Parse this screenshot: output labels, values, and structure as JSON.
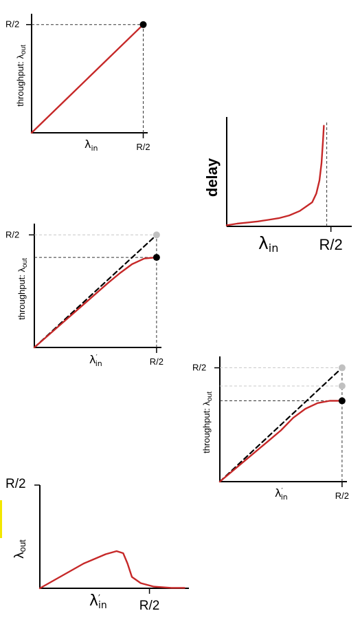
{
  "chart_data": [
    {
      "id": "c1",
      "type": "line",
      "ylabel_main": "throughput: λ",
      "ylabel_sub": "out",
      "xlabel_main": "λ",
      "xlabel_sub": "in",
      "xticks": [
        {
          "label": "R/2",
          "value": 0.5
        }
      ],
      "yticks": [
        {
          "label": "R/2",
          "value": 0.5
        }
      ],
      "xlim": [
        0,
        0.52
      ],
      "ylim": [
        0,
        0.55
      ],
      "series": [
        {
          "color": "#c62828",
          "dashed": false,
          "points": [
            [
              0,
              0
            ],
            [
              0.5,
              0.5
            ]
          ]
        }
      ],
      "refs": [
        {
          "kind": "h",
          "y": 0.5,
          "from": 0,
          "to": 0.5,
          "color": "#333333"
        },
        {
          "kind": "v",
          "x": 0.5,
          "from": 0,
          "to": 0.5,
          "color": "#333333"
        }
      ],
      "dots": [
        {
          "x": 0.5,
          "y": 0.5,
          "color": "#000000"
        }
      ]
    },
    {
      "id": "c2",
      "type": "line",
      "ylabel_main": "delay",
      "ylabel_sub": "",
      "xlabel_main": "λ",
      "xlabel_sub": "in",
      "xticks": [
        {
          "label": "R/2",
          "value": 0.5
        }
      ],
      "yticks": [],
      "xlim": [
        0,
        0.6
      ],
      "ylim": [
        0,
        1
      ],
      "series": [
        {
          "color": "#c62828",
          "dashed": false,
          "points": [
            [
              0,
              0.01
            ],
            [
              0.05,
              0.025
            ],
            [
              0.1,
              0.035
            ],
            [
              0.15,
              0.045
            ],
            [
              0.2,
              0.06
            ],
            [
              0.25,
              0.075
            ],
            [
              0.3,
              0.1
            ],
            [
              0.35,
              0.14
            ],
            [
              0.38,
              0.18
            ],
            [
              0.41,
              0.22
            ],
            [
              0.43,
              0.3
            ],
            [
              0.445,
              0.42
            ],
            [
              0.455,
              0.58
            ],
            [
              0.462,
              0.78
            ],
            [
              0.466,
              0.92
            ]
          ]
        }
      ],
      "refs": [
        {
          "kind": "v",
          "x": 0.48,
          "from": 0,
          "to": 0.95,
          "color": "#333333"
        }
      ],
      "dots": []
    },
    {
      "id": "c3",
      "type": "line",
      "ylabel_main": "throughput: λ",
      "ylabel_sub": "out",
      "xlabel_main": "λ",
      "xlabel_sub": "in",
      "xlabel_prime": true,
      "xticks": [
        {
          "label": "R/2",
          "value": 0.5
        }
      ],
      "yticks": [
        {
          "label": "R/2",
          "value": 0.5
        }
      ],
      "xlim": [
        0,
        0.52
      ],
      "ylim": [
        0,
        0.55
      ],
      "series": [
        {
          "color": "#000000",
          "dashed": true,
          "points": [
            [
              0,
              0
            ],
            [
              0.5,
              0.5
            ]
          ]
        },
        {
          "color": "#c62828",
          "dashed": false,
          "points": [
            [
              0,
              0
            ],
            [
              0.1,
              0.095
            ],
            [
              0.2,
              0.19
            ],
            [
              0.3,
              0.285
            ],
            [
              0.35,
              0.33
            ],
            [
              0.4,
              0.37
            ],
            [
              0.45,
              0.395
            ],
            [
              0.5,
              0.4
            ]
          ]
        }
      ],
      "refs": [
        {
          "kind": "h",
          "y": 0.5,
          "from": 0,
          "to": 0.5,
          "color": "#c8c8c8"
        },
        {
          "kind": "h",
          "y": 0.4,
          "from": 0,
          "to": 0.5,
          "color": "#333333"
        },
        {
          "kind": "v",
          "x": 0.5,
          "from": 0,
          "to": 0.5,
          "color": "#333333"
        }
      ],
      "dots": [
        {
          "x": 0.5,
          "y": 0.5,
          "color": "#c0c0c0"
        },
        {
          "x": 0.5,
          "y": 0.4,
          "color": "#000000"
        }
      ]
    },
    {
      "id": "c4",
      "type": "line",
      "ylabel_main": "throughput: λ",
      "ylabel_sub": "out",
      "xlabel_main": "λ",
      "xlabel_sub": "in",
      "xlabel_prime": true,
      "xticks": [
        {
          "label": "R/2",
          "value": 0.5
        }
      ],
      "yticks": [
        {
          "label": "R/2",
          "value": 0.5
        }
      ],
      "xlim": [
        0,
        0.52
      ],
      "ylim": [
        0,
        0.55
      ],
      "series": [
        {
          "color": "#000000",
          "dashed": true,
          "points": [
            [
              0,
              0
            ],
            [
              0.5,
              0.5
            ]
          ]
        },
        {
          "color": "#c62828",
          "dashed": false,
          "points": [
            [
              0,
              0
            ],
            [
              0.1,
              0.09
            ],
            [
              0.2,
              0.18
            ],
            [
              0.25,
              0.225
            ],
            [
              0.3,
              0.28
            ],
            [
              0.35,
              0.32
            ],
            [
              0.4,
              0.345
            ],
            [
              0.45,
              0.355
            ],
            [
              0.5,
              0.355
            ]
          ]
        }
      ],
      "refs": [
        {
          "kind": "h",
          "y": 0.5,
          "from": 0,
          "to": 0.5,
          "color": "#c8c8c8"
        },
        {
          "kind": "h",
          "y": 0.42,
          "from": 0,
          "to": 0.5,
          "color": "#c8c8c8"
        },
        {
          "kind": "h",
          "y": 0.355,
          "from": 0,
          "to": 0.5,
          "color": "#333333"
        },
        {
          "kind": "v",
          "x": 0.5,
          "from": 0,
          "to": 0.5,
          "color": "#333333"
        }
      ],
      "dots": [
        {
          "x": 0.5,
          "y": 0.5,
          "color": "#c0c0c0"
        },
        {
          "x": 0.5,
          "y": 0.42,
          "color": "#c0c0c0"
        },
        {
          "x": 0.5,
          "y": 0.355,
          "color": "#000000"
        }
      ]
    },
    {
      "id": "c5",
      "type": "line",
      "ylabel_main": "λ",
      "ylabel_sub": "out",
      "xlabel_main": "λ",
      "xlabel_sub": "in",
      "xlabel_prime": true,
      "xticks": [
        {
          "label": "R/2",
          "value": 0.5
        }
      ],
      "yticks": [
        {
          "label": "R/2",
          "value": 0.5
        }
      ],
      "xlim": [
        0,
        0.68
      ],
      "ylim": [
        0,
        0.5
      ],
      "series": [
        {
          "color": "#c62828",
          "dashed": false,
          "points": [
            [
              0,
              0
            ],
            [
              0.1,
              0.06
            ],
            [
              0.2,
              0.12
            ],
            [
              0.3,
              0.165
            ],
            [
              0.35,
              0.18
            ],
            [
              0.38,
              0.17
            ],
            [
              0.4,
              0.12
            ],
            [
              0.42,
              0.055
            ],
            [
              0.46,
              0.025
            ],
            [
              0.52,
              0.008
            ],
            [
              0.6,
              0.002
            ],
            [
              0.66,
              0.002
            ]
          ]
        }
      ],
      "refs": [],
      "dots": []
    }
  ]
}
